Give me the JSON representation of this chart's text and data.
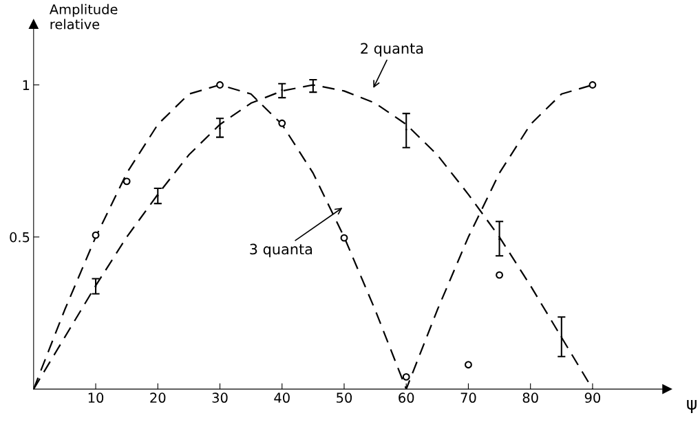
{
  "chart_data": {
    "type": "line",
    "xlabel": "ψ",
    "ylabel": "Amplitude relative",
    "xlim": [
      0,
      102
    ],
    "ylim": [
      0,
      1.2
    ],
    "xticks": [
      10,
      20,
      30,
      40,
      50,
      60,
      70,
      80,
      90
    ],
    "yticks": [
      {
        "value": 0.5,
        "label": "0.5"
      },
      1
    ],
    "grid": false,
    "series": [
      {
        "color": "#000000",
        "line_style": "dashed",
        "marker": "none",
        "x": [
          0,
          5,
          10,
          15,
          20,
          25,
          30,
          35,
          40,
          45,
          50,
          55,
          60,
          65,
          70,
          75,
          80,
          85,
          90
        ],
        "values": [
          0,
          0.17,
          0.34,
          0.5,
          0.64,
          0.77,
          0.87,
          0.94,
          0.98,
          1,
          0.98,
          0.94,
          0.87,
          0.77,
          0.64,
          0.5,
          0.34,
          0.17,
          0
        ]
      },
      {
        "color": "#000000",
        "line_style": "dashed",
        "marker": "none",
        "x": [
          0,
          5,
          10,
          15,
          20,
          25,
          30,
          35,
          40,
          45,
          50,
          55,
          60,
          65,
          70,
          75,
          80,
          85,
          90
        ],
        "values": [
          0,
          0.26,
          0.5,
          0.71,
          0.87,
          0.97,
          1,
          0.97,
          0.87,
          0.71,
          0.5,
          0.26,
          0,
          0.26,
          0.5,
          0.71,
          0.87,
          0.97,
          1
        ]
      },
      {
        "type": "scatter",
        "color": "#000000",
        "x": [
          10,
          20,
          30,
          40,
          45,
          60,
          75,
          85
        ],
        "values": [
          0.337,
          0.636,
          0.857,
          0.983,
          0.997,
          0.853,
          0.493,
          0.172
        ],
        "errors": [
          [
            0.313,
            0.363
          ],
          [
            0.61,
            0.66
          ],
          [
            0.828,
            0.89
          ],
          [
            0.958,
            1.004
          ],
          [
            0.976,
            1.017
          ],
          [
            0.794,
            0.906
          ],
          [
            0.438,
            0.551
          ],
          [
            0.107,
            0.237
          ]
        ]
      },
      {
        "type": "scatter",
        "color": "#000000",
        "marker": "circle",
        "x": [
          10,
          15,
          30,
          40,
          50,
          60,
          70,
          75,
          90
        ],
        "values": [
          0.506,
          0.683,
          1.0,
          0.874,
          0.497,
          0.04,
          0.08,
          0.375,
          1.0
        ]
      }
    ],
    "annotations": [
      "2 quanta",
      "3 quanta"
    ]
  }
}
